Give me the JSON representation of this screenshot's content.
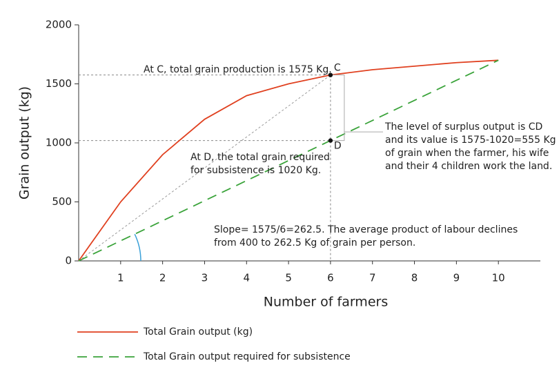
{
  "chart_data": {
    "type": "line",
    "x_label": "Number of farmers",
    "y_label": "Grain output (kg)",
    "x": [
      0,
      1,
      2,
      3,
      4,
      5,
      6,
      7,
      8,
      9,
      10
    ],
    "series": [
      {
        "name": "Total Grain output (kg)",
        "color": "#e0401f",
        "dash": "solid",
        "values": [
          0,
          500,
          900,
          1200,
          1400,
          1500,
          1575,
          1620,
          1650,
          1680,
          1700
        ]
      },
      {
        "name": "Total Grain output required for subsistence",
        "color": "#3aa33a",
        "dash": "dashed",
        "values": [
          0,
          170,
          340,
          510,
          680,
          850,
          1020,
          1190,
          1360,
          1530,
          1700
        ]
      }
    ],
    "reference_line": {
      "x": [
        0,
        6
      ],
      "values": [
        0,
        1575
      ],
      "color": "#999999"
    },
    "points": [
      {
        "label": "C",
        "x": 6,
        "y": 1575
      },
      {
        "label": "D",
        "x": 6,
        "y": 1020
      }
    ],
    "annotations": {
      "c_note": [
        "At C, total grain production is 1575 Kg."
      ],
      "d_note": [
        "At D, the total grain required",
        "for subsistence is 1020 Kg."
      ],
      "surplus_note": [
        "The level of surplus output is CD",
        "and its value is 1575-1020=555 Kg",
        "of grain when the farmer, his wife",
        "and their 4 children work the land."
      ],
      "slope_note": [
        "Slope= 1575/6=262.5. The average product of labour declines",
        "from 400 to 262.5 Kg of grain per person."
      ]
    },
    "xlim": [
      0,
      11
    ],
    "xticks": [
      1,
      2,
      3,
      4,
      5,
      6,
      7,
      8,
      9,
      10
    ],
    "ylim": [
      0,
      2000
    ],
    "yticks": [
      0,
      500,
      1000,
      1500,
      2000
    ],
    "grid": false
  }
}
